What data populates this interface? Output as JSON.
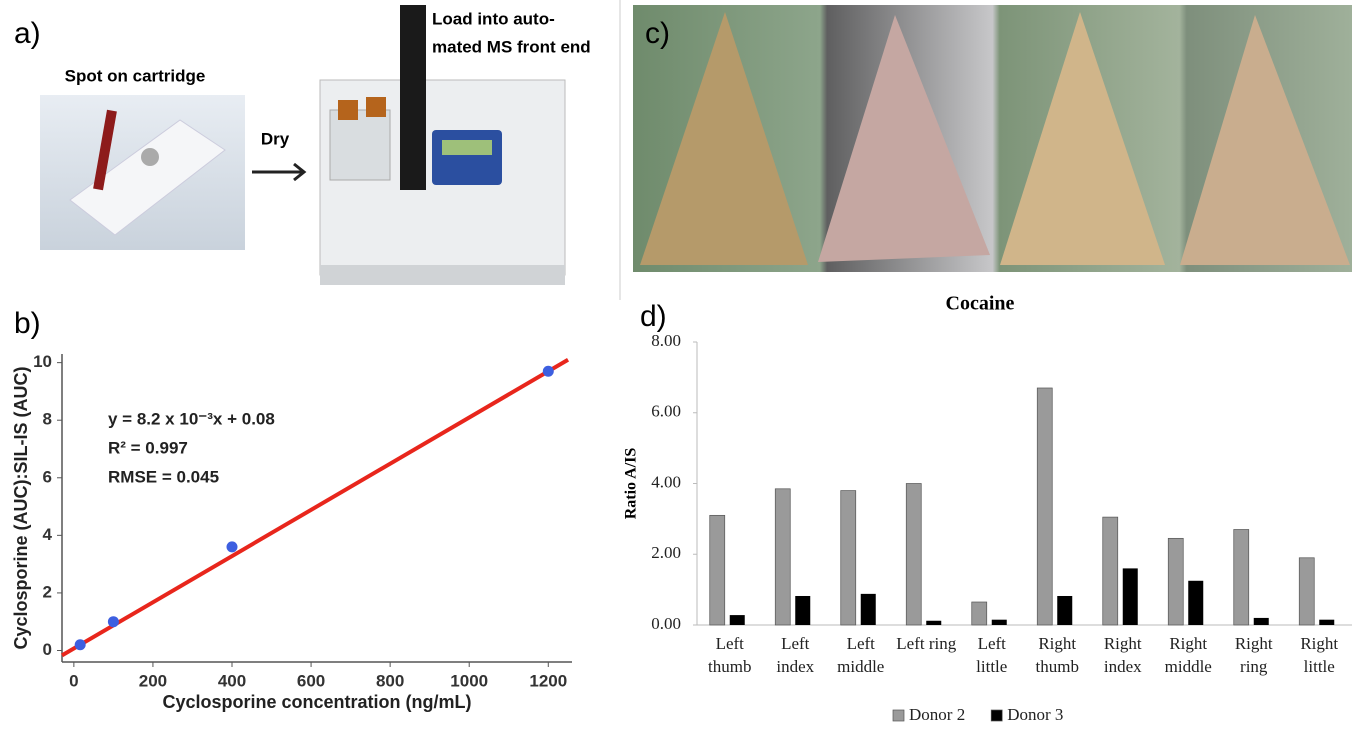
{
  "panels": {
    "a_label": "a)",
    "b_label": "b)",
    "c_label": "c)",
    "d_label": "d)",
    "spot_caption": "Spot on cartridge",
    "dry_caption": "Dry",
    "load_caption_1": "Load into auto-",
    "load_caption_2": "mated MS front end"
  },
  "chart_data": [
    {
      "type": "scatter",
      "xlabel": "Cyclosporine concentration (ng/mL)",
      "ylabel": "Cyclosporine (AUC):SIL-IS (AUC)",
      "annotations": [
        "y = 8.2 x 10⁻³x + 0.08",
        "R² = 0.997",
        "RMSE = 0.045"
      ],
      "xlim": [
        -30,
        1260
      ],
      "ylim": [
        -0.4,
        10.3
      ],
      "xticks": [
        0,
        200,
        400,
        600,
        800,
        1000,
        1200
      ],
      "yticks": [
        0,
        2,
        4,
        6,
        8,
        10
      ],
      "series": [
        {
          "mode": "line",
          "color": "#e8261c",
          "x": [
            -30,
            1250
          ],
          "values": [
            -0.17,
            10.1
          ]
        },
        {
          "mode": "markers",
          "color": "#3d5fe0",
          "x": [
            16,
            100,
            400,
            1200
          ],
          "values": [
            0.2,
            1.0,
            3.6,
            9.7
          ]
        }
      ]
    },
    {
      "type": "bar",
      "title": "Cocaine",
      "ylabel": "Ratio A/IS",
      "categories": [
        "Left thumb",
        "Left index",
        "Left middle",
        "Left ring",
        "Left little",
        "Right thumb",
        "Right index",
        "Right middle",
        "Right ring",
        "Right little"
      ],
      "ylim": [
        0,
        8
      ],
      "yticks": [
        {
          "value": 0,
          "label": "0.00"
        },
        {
          "value": 2,
          "label": "2.00"
        },
        {
          "value": 4,
          "label": "4.00"
        },
        {
          "value": 6,
          "label": "6.00"
        },
        {
          "value": 8,
          "label": "8.00"
        }
      ],
      "legend": "bottom",
      "series": [
        {
          "name": "Donor 2",
          "color": "#9a9a9a",
          "values": [
            3.1,
            3.85,
            3.8,
            4.0,
            0.65,
            6.7,
            3.05,
            2.45,
            2.7,
            1.9
          ]
        },
        {
          "name": "Donor 3",
          "color": "#000000",
          "values": [
            0.28,
            0.82,
            0.88,
            0.12,
            0.15,
            0.82,
            1.6,
            1.25,
            0.2,
            0.15
          ]
        }
      ]
    }
  ]
}
